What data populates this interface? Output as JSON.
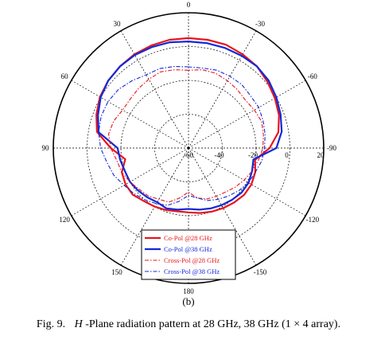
{
  "chart_data": {
    "type": "polar-line",
    "angle_unit": "deg",
    "angle_ticks": [
      0,
      30,
      60,
      90,
      120,
      150,
      180,
      -150,
      -120,
      -90,
      -60,
      -30
    ],
    "angle_labels": [
      "0",
      "30",
      "60",
      "90",
      "120",
      "150",
      "180",
      "-150",
      "-120",
      "-90",
      "-60",
      "-30"
    ],
    "radial_range": [
      -60,
      20
    ],
    "radial_ticks": [
      -60,
      -40,
      -20,
      0,
      20
    ],
    "radial_labels": [
      "-60",
      "-40",
      "-20",
      "0",
      "20"
    ],
    "grid": true,
    "legend_position": "bottom-center",
    "series": [
      {
        "name": "Co-Pol @28 GHz",
        "color": "#e8141b",
        "style": "solid",
        "angles": [
          0,
          10,
          20,
          30,
          40,
          50,
          60,
          70,
          80,
          90,
          100,
          110,
          120,
          130,
          140,
          150,
          160,
          170,
          180,
          -170,
          -160,
          -150,
          -140,
          -130,
          -120,
          -110,
          -100,
          -90,
          -80,
          -70,
          -60,
          -50,
          -40,
          -30,
          -20,
          -10
        ],
        "values": [
          5,
          5,
          4.5,
          4,
          3,
          2,
          0.5,
          -2,
          -5,
          -14,
          -22,
          -18,
          -17,
          -17,
          -19,
          -20,
          -21,
          -22,
          -22,
          -21,
          -20,
          -19,
          -18,
          -17,
          -17,
          -18,
          -20,
          -12,
          -6,
          -3,
          -1,
          1,
          3,
          4,
          5,
          5
        ]
      },
      {
        "name": "Co-Pol @38 GHz",
        "color": "#1428d8",
        "style": "solid",
        "angles": [
          0,
          10,
          20,
          30,
          40,
          50,
          60,
          70,
          80,
          90,
          100,
          110,
          120,
          130,
          140,
          150,
          160,
          170,
          180,
          -170,
          -160,
          -150,
          -140,
          -130,
          -120,
          -110,
          -100,
          -90,
          -80,
          -70,
          -60,
          -50,
          -40,
          -30,
          -20,
          -10
        ],
        "values": [
          3,
          3.5,
          3.5,
          3.5,
          3,
          2,
          0,
          -3,
          -6,
          -18,
          -19,
          -20,
          -20,
          -21,
          -22,
          -23,
          -22,
          -23,
          -24,
          -23,
          -22,
          -21,
          -20,
          -19,
          -19,
          -20,
          -21,
          -8,
          -4,
          -2,
          0,
          2,
          3,
          3,
          3,
          3
        ]
      },
      {
        "name": "Cross-Pol @28 GHz",
        "color": "#e8141b",
        "style": "dashdot",
        "angles": [
          0,
          10,
          20,
          30,
          40,
          50,
          60,
          70,
          80,
          90,
          100,
          110,
          120,
          130,
          140,
          150,
          160,
          170,
          180,
          -170,
          -160,
          -150,
          -140,
          -130,
          -120,
          -110,
          -100,
          -90,
          -80,
          -70,
          -60,
          -50,
          -40,
          -30,
          -20,
          -10
        ],
        "values": [
          -14,
          -13,
          -12,
          -13,
          -14,
          -15,
          -15,
          -13,
          -12,
          -14,
          -17,
          -18,
          -20,
          -22,
          -23,
          -25,
          -26,
          -30,
          -34,
          -30,
          -28,
          -27,
          -26,
          -24,
          -22,
          -20,
          -18,
          -16,
          -15,
          -14,
          -15,
          -16,
          -15,
          -14,
          -13,
          -13
        ]
      },
      {
        "name": "Cross-Pol @38 GHz",
        "color": "#1428d8",
        "style": "dashdot",
        "angles": [
          0,
          10,
          20,
          30,
          40,
          50,
          60,
          70,
          80,
          90,
          100,
          110,
          120,
          130,
          140,
          150,
          160,
          170,
          180,
          -170,
          -160,
          -150,
          -140,
          -130,
          -120,
          -110,
          -100,
          -90,
          -80,
          -70,
          -60,
          -50,
          -40,
          -30,
          -20,
          -10
        ],
        "values": [
          -12,
          -11,
          -10,
          -10,
          -8,
          -6,
          -5,
          -5,
          -6,
          -8,
          -11,
          -13,
          -16,
          -18,
          -20,
          -22,
          -24,
          -28,
          -32,
          -30,
          -27,
          -25,
          -23,
          -21,
          -19,
          -18,
          -16,
          -15,
          -14,
          -13,
          -12,
          -12,
          -11,
          -11,
          -11,
          -12
        ]
      }
    ],
    "sub_label": "(b)",
    "caption": {
      "prefix": "Fig. 9.",
      "italic": "H",
      "text": "-Plane radiation pattern at 28 GHz, 38 GHz (1 × 4 array)."
    }
  }
}
